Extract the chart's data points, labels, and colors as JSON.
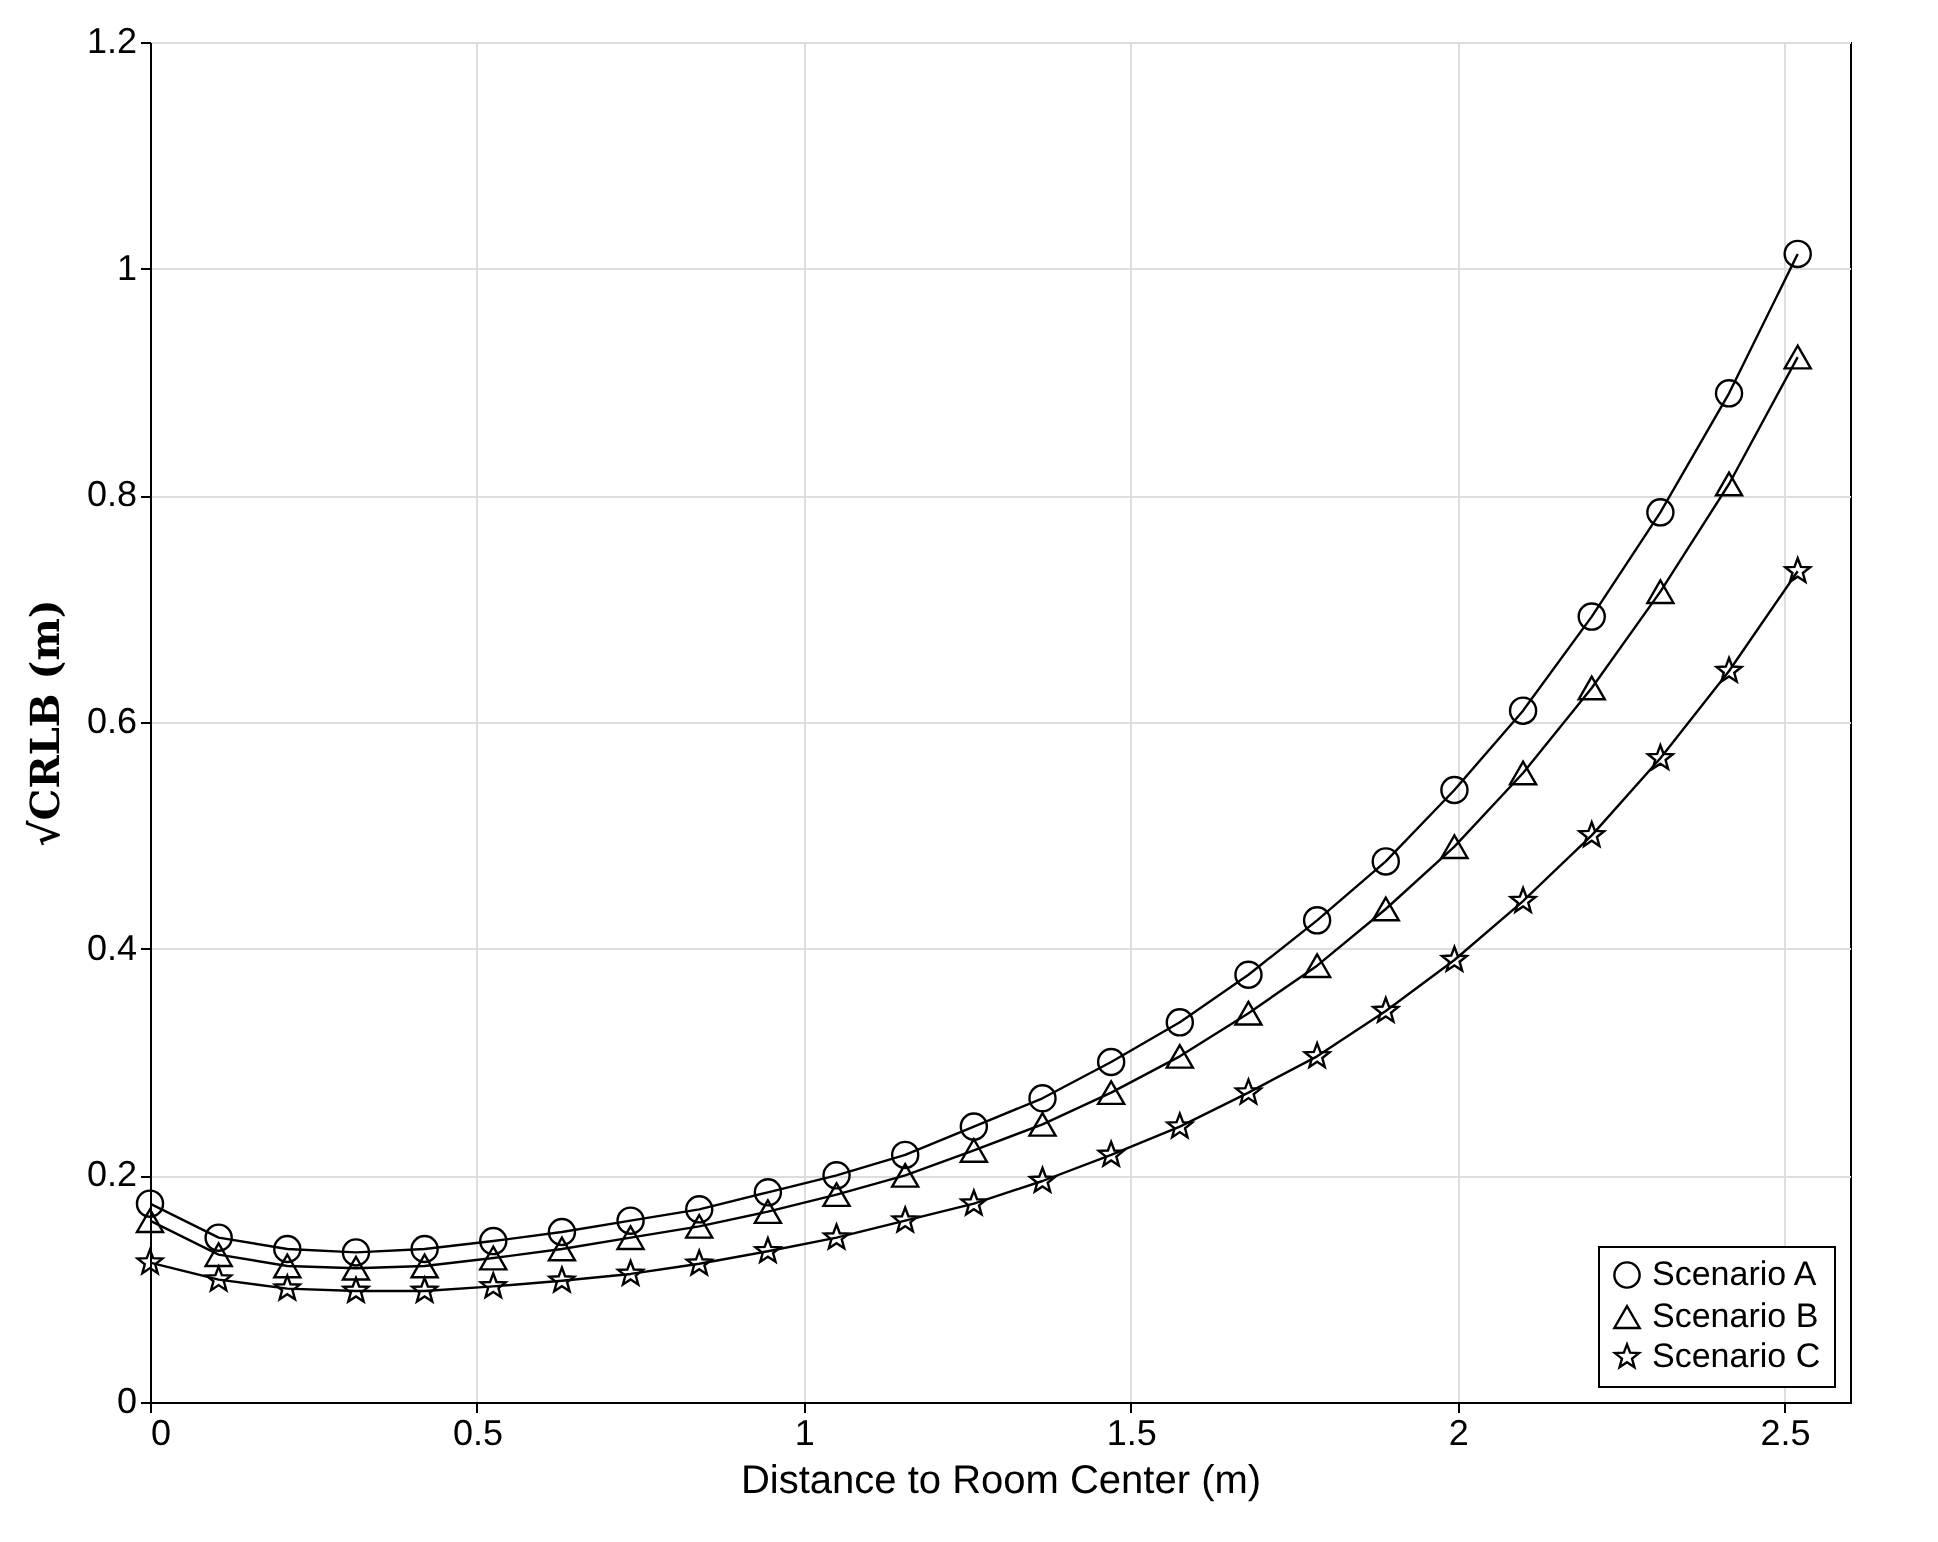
{
  "chart_data": {
    "type": "line",
    "xlabel": "Distance to Room Center (m)",
    "ylabel": "√CRLB (m)",
    "x": [
      0,
      0.105,
      0.21,
      0.315,
      0.42,
      0.525,
      0.63,
      0.735,
      0.84,
      0.945,
      1.05,
      1.155,
      1.26,
      1.365,
      1.47,
      1.575,
      1.68,
      1.785,
      1.89,
      1.995,
      2.1,
      2.205,
      2.31,
      2.415,
      2.52
    ],
    "series": [
      {
        "name": "Scenario A",
        "color": "#000000",
        "marker": "circle",
        "values": [
          0.175,
          0.145,
          0.135,
          0.132,
          0.135,
          0.142,
          0.15,
          0.16,
          0.17,
          0.185,
          0.2,
          0.218,
          0.243,
          0.268,
          0.3,
          0.335,
          0.377,
          0.425,
          0.477,
          0.54,
          0.61,
          0.693,
          0.785,
          0.89,
          1.013
        ]
      },
      {
        "name": "Scenario B",
        "color": "#000000",
        "marker": "triangle",
        "values": [
          0.16,
          0.13,
          0.12,
          0.118,
          0.12,
          0.127,
          0.135,
          0.145,
          0.155,
          0.168,
          0.183,
          0.2,
          0.222,
          0.245,
          0.273,
          0.305,
          0.343,
          0.385,
          0.435,
          0.49,
          0.555,
          0.63,
          0.715,
          0.81,
          0.922
        ]
      },
      {
        "name": "Scenario C",
        "color": "#000000",
        "marker": "star",
        "values": [
          0.123,
          0.108,
          0.1,
          0.098,
          0.098,
          0.102,
          0.107,
          0.113,
          0.122,
          0.133,
          0.145,
          0.16,
          0.175,
          0.195,
          0.218,
          0.243,
          0.273,
          0.305,
          0.345,
          0.39,
          0.442,
          0.5,
          0.568,
          0.645,
          0.733
        ]
      }
    ],
    "xlim": [
      0,
      2.6
    ],
    "xticks": [
      0,
      0.5,
      1,
      1.5,
      2,
      2.5
    ],
    "ylim": [
      0,
      1.2
    ],
    "yticks": [
      0,
      0.2,
      0.4,
      0.6,
      0.8,
      1,
      1.2
    ],
    "grid": true,
    "legend": "bottom right",
    "line_style": "solid"
  }
}
